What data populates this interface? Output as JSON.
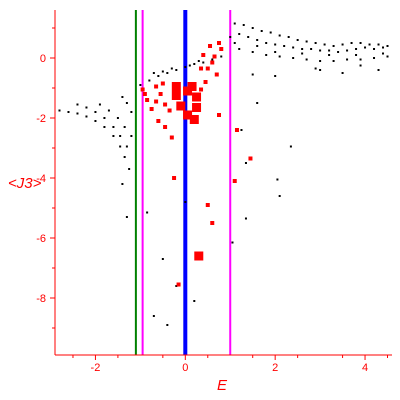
{
  "chart_data": {
    "type": "scatter",
    "title": "",
    "xlabel": "E",
    "ylabel": "<J3>",
    "xlim": [
      -2.9,
      4.6
    ],
    "ylim": [
      -9.9,
      1.6
    ],
    "xticks": [
      -2,
      0,
      2,
      4
    ],
    "xtick_labels": [
      "-2",
      "0",
      "2",
      "4"
    ],
    "yticks": [
      0,
      -2,
      -4,
      -6,
      -8
    ],
    "ytick_labels": [
      "0",
      "-2",
      "-4",
      "-6",
      "-8"
    ],
    "grid": false,
    "legend": "none",
    "colors": {
      "axes": "#ff0000",
      "background_points": "#000000",
      "highlight_points": "#ff0000",
      "center_line": "#0000ff",
      "green_line": "#008000",
      "magenta_lines": "#ff00ff"
    },
    "vertical_lines": [
      {
        "x": -1.1,
        "color": "#008000"
      },
      {
        "x": -0.95,
        "color": "#ff00ff"
      },
      {
        "x": 0.0,
        "color": "#0000ff"
      },
      {
        "x": 1.0,
        "color": "#ff00ff"
      }
    ],
    "series": [
      {
        "color": "#000000",
        "marker": "dot",
        "points": [
          [
            -2.8,
            -1.75
          ],
          [
            -2.6,
            -1.8
          ],
          [
            -2.4,
            -1.85
          ],
          [
            -2.2,
            -1.95
          ],
          [
            -2.0,
            -2.1
          ],
          [
            -1.8,
            -2.3
          ],
          [
            -1.6,
            -2.6
          ],
          [
            -1.45,
            -2.95
          ],
          [
            -1.35,
            -3.3
          ],
          [
            -1.25,
            -3.7
          ],
          [
            -2.4,
            -1.55
          ],
          [
            -2.2,
            -1.65
          ],
          [
            -2.0,
            -1.8
          ],
          [
            -1.8,
            -2.0
          ],
          [
            -1.6,
            -2.3
          ],
          [
            -1.45,
            -2.6
          ],
          [
            -1.3,
            -2.95
          ],
          [
            -1.9,
            -1.55
          ],
          [
            -1.7,
            -1.75
          ],
          [
            -1.5,
            -2.0
          ],
          [
            -1.35,
            -2.3
          ],
          [
            -1.2,
            -2.6
          ],
          [
            -1.4,
            -1.3
          ],
          [
            -1.3,
            -1.5
          ],
          [
            -1.2,
            -1.8
          ],
          [
            -1.0,
            -0.9
          ],
          [
            -0.8,
            -0.75
          ],
          [
            -0.6,
            -0.6
          ],
          [
            -0.4,
            -0.5
          ],
          [
            -0.2,
            -0.4
          ],
          [
            0.0,
            -0.3
          ],
          [
            0.2,
            -0.2
          ],
          [
            0.4,
            -0.15
          ],
          [
            0.6,
            -0.05
          ],
          [
            0.8,
            0.05
          ],
          [
            -0.7,
            -0.5
          ],
          [
            -0.5,
            -0.45
          ],
          [
            -0.3,
            -0.35
          ],
          [
            0.1,
            -0.25
          ],
          [
            0.3,
            -0.1
          ],
          [
            1.0,
            0.7
          ],
          [
            1.2,
            0.8
          ],
          [
            1.4,
            0.7
          ],
          [
            1.6,
            0.6
          ],
          [
            1.8,
            0.5
          ],
          [
            2.0,
            0.45
          ],
          [
            2.2,
            0.4
          ],
          [
            2.4,
            0.35
          ],
          [
            2.6,
            0.3
          ],
          [
            2.8,
            0.3
          ],
          [
            3.0,
            0.25
          ],
          [
            3.2,
            0.25
          ],
          [
            3.4,
            0.2
          ],
          [
            3.6,
            0.25
          ],
          [
            3.8,
            0.3
          ],
          [
            4.0,
            0.35
          ],
          [
            4.2,
            0.3
          ],
          [
            4.4,
            0.35
          ],
          [
            1.1,
            1.15
          ],
          [
            1.3,
            1.1
          ],
          [
            1.5,
            1.0
          ],
          [
            1.7,
            0.9
          ],
          [
            1.9,
            0.85
          ],
          [
            2.1,
            0.75
          ],
          [
            2.3,
            0.7
          ],
          [
            2.5,
            0.6
          ],
          [
            2.7,
            0.55
          ],
          [
            2.9,
            0.5
          ],
          [
            3.1,
            0.45
          ],
          [
            3.3,
            0.4
          ],
          [
            3.5,
            0.45
          ],
          [
            3.7,
            0.5
          ],
          [
            3.9,
            0.5
          ],
          [
            4.1,
            0.45
          ],
          [
            4.3,
            0.45
          ],
          [
            4.5,
            0.4
          ],
          [
            1.2,
            0.3
          ],
          [
            1.5,
            0.2
          ],
          [
            1.8,
            0.1
          ],
          [
            2.1,
            0.05
          ],
          [
            2.4,
            0.0
          ],
          [
            2.7,
            -0.05
          ],
          [
            3.0,
            -0.1
          ],
          [
            3.3,
            -0.1
          ],
          [
            3.6,
            -0.05
          ],
          [
            3.9,
            -0.05
          ],
          [
            4.2,
            0.0
          ],
          [
            4.5,
            0.05
          ],
          [
            1.1,
            0.5
          ],
          [
            1.6,
            0.4
          ],
          [
            2.0,
            0.2
          ],
          [
            2.6,
            0.15
          ],
          [
            3.2,
            0.1
          ],
          [
            3.8,
            0.1
          ],
          [
            4.4,
            0.15
          ],
          [
            1.5,
            -0.55
          ],
          [
            2.0,
            -0.6
          ],
          [
            3.0,
            -0.4
          ],
          [
            3.5,
            -0.5
          ],
          [
            4.3,
            -0.4
          ],
          [
            2.9,
            -0.35
          ],
          [
            3.9,
            -0.25
          ],
          [
            -1.4,
            -4.2
          ],
          [
            -1.3,
            -5.3
          ],
          [
            -0.85,
            -5.15
          ],
          [
            -0.5,
            -6.7
          ],
          [
            -0.7,
            -8.6
          ],
          [
            -0.4,
            -8.9
          ],
          [
            -0.2,
            -7.6
          ],
          [
            0.2,
            -8.1
          ],
          [
            0.0,
            -4.8
          ],
          [
            1.05,
            -6.15
          ],
          [
            1.35,
            -5.35
          ],
          [
            1.35,
            -3.5
          ],
          [
            1.6,
            -1.5
          ],
          [
            2.1,
            -4.6
          ],
          [
            2.35,
            -2.95
          ],
          [
            2.05,
            -4.05
          ],
          [
            1.25,
            -2.4
          ]
        ]
      },
      {
        "color": "#ff0000",
        "marker": "square",
        "points": [
          [
            -0.2,
            -1.25
          ],
          [
            0.05,
            -1.1
          ],
          [
            0.25,
            -1.3
          ],
          [
            0.25,
            -1.65
          ],
          [
            0.2,
            -2.05
          ],
          [
            -0.1,
            -1.6
          ],
          [
            0.05,
            -1.9
          ],
          [
            -0.2,
            -0.95
          ],
          [
            0.15,
            -0.95
          ],
          [
            0.35,
            -1.05
          ],
          [
            -0.5,
            -0.85
          ],
          [
            -0.55,
            -1.2
          ],
          [
            -0.65,
            -1.45
          ],
          [
            -0.75,
            -1.7
          ],
          [
            -0.9,
            -1.2
          ],
          [
            -0.6,
            -2.1
          ],
          [
            -0.45,
            -2.3
          ],
          [
            -0.3,
            -2.65
          ],
          [
            -0.45,
            -1.55
          ],
          [
            0.5,
            -0.35
          ],
          [
            0.6,
            -0.15
          ],
          [
            0.65,
            0.05
          ],
          [
            0.8,
            0.3
          ],
          [
            0.75,
            0.5
          ],
          [
            0.55,
            0.4
          ],
          [
            0.4,
            0.1
          ],
          [
            0.35,
            -0.35
          ],
          [
            0.3,
            -6.6
          ],
          [
            -0.25,
            -4.0
          ],
          [
            0.5,
            -4.9
          ],
          [
            0.6,
            -5.5
          ],
          [
            1.1,
            -4.1
          ],
          [
            0.75,
            -1.9
          ],
          [
            1.15,
            -2.4
          ],
          [
            1.45,
            -3.35
          ],
          [
            -0.15,
            -7.55
          ],
          [
            -0.95,
            -1.05
          ],
          [
            -0.85,
            -1.4
          ],
          [
            -0.35,
            -1.75
          ],
          [
            0.45,
            -0.8
          ],
          [
            0.7,
            -0.55
          ],
          [
            -0.65,
            -0.95
          ]
        ]
      }
    ]
  }
}
